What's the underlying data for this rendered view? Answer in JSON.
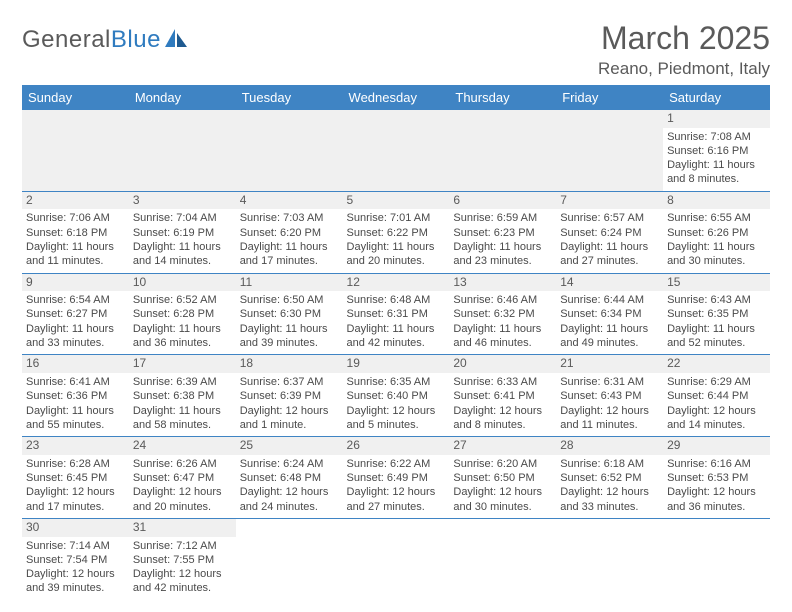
{
  "logo": {
    "text1": "General",
    "text2": "Blue"
  },
  "title": "March 2025",
  "location": "Reano, Piedmont, Italy",
  "colors": {
    "header_bg": "#3f84c4",
    "header_fg": "#ffffff",
    "border": "#3f84c4",
    "daynum_bg": "#f0f0f0",
    "text": "#4a4a4a",
    "logo_blue": "#2f7bbf"
  },
  "weekdays": [
    "Sunday",
    "Monday",
    "Tuesday",
    "Wednesday",
    "Thursday",
    "Friday",
    "Saturday"
  ],
  "weeks": [
    [
      null,
      null,
      null,
      null,
      null,
      null,
      {
        "n": "1",
        "sr": "Sunrise: 7:08 AM",
        "ss": "Sunset: 6:16 PM",
        "dl": "Daylight: 11 hours and 8 minutes."
      }
    ],
    [
      {
        "n": "2",
        "sr": "Sunrise: 7:06 AM",
        "ss": "Sunset: 6:18 PM",
        "dl": "Daylight: 11 hours and 11 minutes."
      },
      {
        "n": "3",
        "sr": "Sunrise: 7:04 AM",
        "ss": "Sunset: 6:19 PM",
        "dl": "Daylight: 11 hours and 14 minutes."
      },
      {
        "n": "4",
        "sr": "Sunrise: 7:03 AM",
        "ss": "Sunset: 6:20 PM",
        "dl": "Daylight: 11 hours and 17 minutes."
      },
      {
        "n": "5",
        "sr": "Sunrise: 7:01 AM",
        "ss": "Sunset: 6:22 PM",
        "dl": "Daylight: 11 hours and 20 minutes."
      },
      {
        "n": "6",
        "sr": "Sunrise: 6:59 AM",
        "ss": "Sunset: 6:23 PM",
        "dl": "Daylight: 11 hours and 23 minutes."
      },
      {
        "n": "7",
        "sr": "Sunrise: 6:57 AM",
        "ss": "Sunset: 6:24 PM",
        "dl": "Daylight: 11 hours and 27 minutes."
      },
      {
        "n": "8",
        "sr": "Sunrise: 6:55 AM",
        "ss": "Sunset: 6:26 PM",
        "dl": "Daylight: 11 hours and 30 minutes."
      }
    ],
    [
      {
        "n": "9",
        "sr": "Sunrise: 6:54 AM",
        "ss": "Sunset: 6:27 PM",
        "dl": "Daylight: 11 hours and 33 minutes."
      },
      {
        "n": "10",
        "sr": "Sunrise: 6:52 AM",
        "ss": "Sunset: 6:28 PM",
        "dl": "Daylight: 11 hours and 36 minutes."
      },
      {
        "n": "11",
        "sr": "Sunrise: 6:50 AM",
        "ss": "Sunset: 6:30 PM",
        "dl": "Daylight: 11 hours and 39 minutes."
      },
      {
        "n": "12",
        "sr": "Sunrise: 6:48 AM",
        "ss": "Sunset: 6:31 PM",
        "dl": "Daylight: 11 hours and 42 minutes."
      },
      {
        "n": "13",
        "sr": "Sunrise: 6:46 AM",
        "ss": "Sunset: 6:32 PM",
        "dl": "Daylight: 11 hours and 46 minutes."
      },
      {
        "n": "14",
        "sr": "Sunrise: 6:44 AM",
        "ss": "Sunset: 6:34 PM",
        "dl": "Daylight: 11 hours and 49 minutes."
      },
      {
        "n": "15",
        "sr": "Sunrise: 6:43 AM",
        "ss": "Sunset: 6:35 PM",
        "dl": "Daylight: 11 hours and 52 minutes."
      }
    ],
    [
      {
        "n": "16",
        "sr": "Sunrise: 6:41 AM",
        "ss": "Sunset: 6:36 PM",
        "dl": "Daylight: 11 hours and 55 minutes."
      },
      {
        "n": "17",
        "sr": "Sunrise: 6:39 AM",
        "ss": "Sunset: 6:38 PM",
        "dl": "Daylight: 11 hours and 58 minutes."
      },
      {
        "n": "18",
        "sr": "Sunrise: 6:37 AM",
        "ss": "Sunset: 6:39 PM",
        "dl": "Daylight: 12 hours and 1 minute."
      },
      {
        "n": "19",
        "sr": "Sunrise: 6:35 AM",
        "ss": "Sunset: 6:40 PM",
        "dl": "Daylight: 12 hours and 5 minutes."
      },
      {
        "n": "20",
        "sr": "Sunrise: 6:33 AM",
        "ss": "Sunset: 6:41 PM",
        "dl": "Daylight: 12 hours and 8 minutes."
      },
      {
        "n": "21",
        "sr": "Sunrise: 6:31 AM",
        "ss": "Sunset: 6:43 PM",
        "dl": "Daylight: 12 hours and 11 minutes."
      },
      {
        "n": "22",
        "sr": "Sunrise: 6:29 AM",
        "ss": "Sunset: 6:44 PM",
        "dl": "Daylight: 12 hours and 14 minutes."
      }
    ],
    [
      {
        "n": "23",
        "sr": "Sunrise: 6:28 AM",
        "ss": "Sunset: 6:45 PM",
        "dl": "Daylight: 12 hours and 17 minutes."
      },
      {
        "n": "24",
        "sr": "Sunrise: 6:26 AM",
        "ss": "Sunset: 6:47 PM",
        "dl": "Daylight: 12 hours and 20 minutes."
      },
      {
        "n": "25",
        "sr": "Sunrise: 6:24 AM",
        "ss": "Sunset: 6:48 PM",
        "dl": "Daylight: 12 hours and 24 minutes."
      },
      {
        "n": "26",
        "sr": "Sunrise: 6:22 AM",
        "ss": "Sunset: 6:49 PM",
        "dl": "Daylight: 12 hours and 27 minutes."
      },
      {
        "n": "27",
        "sr": "Sunrise: 6:20 AM",
        "ss": "Sunset: 6:50 PM",
        "dl": "Daylight: 12 hours and 30 minutes."
      },
      {
        "n": "28",
        "sr": "Sunrise: 6:18 AM",
        "ss": "Sunset: 6:52 PM",
        "dl": "Daylight: 12 hours and 33 minutes."
      },
      {
        "n": "29",
        "sr": "Sunrise: 6:16 AM",
        "ss": "Sunset: 6:53 PM",
        "dl": "Daylight: 12 hours and 36 minutes."
      }
    ],
    [
      {
        "n": "30",
        "sr": "Sunrise: 7:14 AM",
        "ss": "Sunset: 7:54 PM",
        "dl": "Daylight: 12 hours and 39 minutes."
      },
      {
        "n": "31",
        "sr": "Sunrise: 7:12 AM",
        "ss": "Sunset: 7:55 PM",
        "dl": "Daylight: 12 hours and 42 minutes."
      },
      null,
      null,
      null,
      null,
      null
    ]
  ]
}
